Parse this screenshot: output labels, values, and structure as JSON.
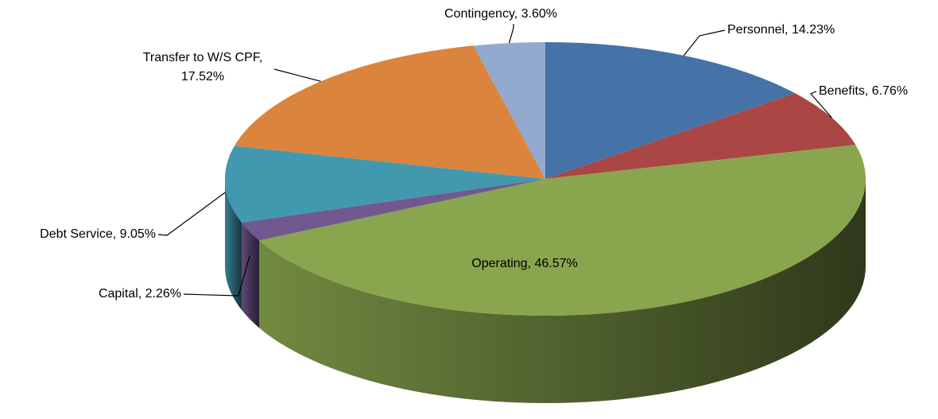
{
  "chart_data": {
    "type": "pie",
    "values": [
      14.23,
      6.76,
      46.57,
      2.26,
      9.05,
      17.52,
      3.6
    ],
    "value_labels": [
      "Personnel, 14.23%",
      "Benefits, 6.76%",
      "Operating, 46.57%",
      "Capital, 2.26%",
      "Debt Service, 9.05%",
      "Transfer to W/S CPF, 17.52%",
      "Contingency, 3.60%"
    ],
    "colors": [
      "#4572a7",
      "#aa4643",
      "#89a54e",
      "#71588f",
      "#4198af",
      "#db843d",
      "#93a9cf"
    ],
    "three_d": true
  }
}
